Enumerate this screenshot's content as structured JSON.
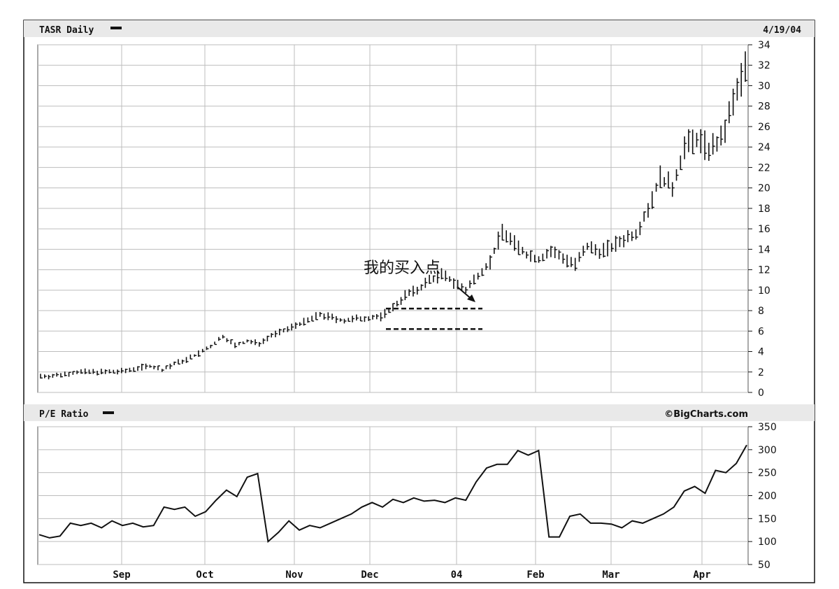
{
  "price_panel": {
    "title": "TASR Daily",
    "date": "4/19/04",
    "annotation": "我的买入点"
  },
  "pe_panel": {
    "title": "P/E Ratio",
    "credit": "©BigCharts.com"
  },
  "colors": {
    "header_band": "#e9e9e9",
    "grid": "#bdbdbd",
    "ink": "#111111"
  },
  "chart_data": [
    {
      "type": "line",
      "subtype": "ohlc-bar",
      "title": "TASR Daily",
      "x_ticks": [
        "Sep",
        "Oct",
        "Nov",
        "Dec",
        "04",
        "Feb",
        "Mar",
        "Apr"
      ],
      "y_ticks": [
        0,
        2,
        4,
        6,
        8,
        10,
        12,
        14,
        16,
        18,
        20,
        22,
        24,
        26,
        28,
        30,
        32,
        34
      ],
      "ylim": [
        0,
        34
      ],
      "grid": true,
      "annotation": {
        "text": "我的买入点",
        "consolidation_range": [
          6.2,
          8.2
        ],
        "consolidation_span": [
          "Dec",
          "04"
        ]
      },
      "anchors": [
        [
          "Aug",
          1.6
        ],
        [
          "Aug",
          1.6
        ],
        [
          "Aug",
          1.8
        ],
        [
          "Aug",
          2.0
        ],
        [
          "Sep",
          2.0
        ],
        [
          "Sep",
          2.0
        ],
        [
          "Sep",
          2.0
        ],
        [
          "Sep",
          2.1
        ],
        [
          "Oct",
          2.4
        ],
        [
          "Oct",
          2.6
        ],
        [
          "Oct",
          2.2
        ],
        [
          "Oct",
          2.8
        ],
        [
          "Oct",
          3.2
        ],
        [
          "Oct",
          3.8
        ],
        [
          "Oct",
          4.5
        ],
        [
          "Nov",
          5.5
        ],
        [
          "Nov",
          4.6
        ],
        [
          "Nov",
          5.0
        ],
        [
          "Nov",
          4.8
        ],
        [
          "Nov",
          5.6
        ],
        [
          "Nov",
          6.0
        ],
        [
          "Dec",
          6.6
        ],
        [
          "Dec",
          7.0
        ],
        [
          "Dec",
          7.6
        ],
        [
          "Dec",
          7.3
        ],
        [
          "Dec",
          7.0
        ],
        [
          "Dec",
          7.2
        ],
        [
          "04",
          7.3
        ],
        [
          "04",
          7.4
        ],
        [
          "04",
          8.3
        ],
        [
          "04",
          9.5
        ],
        [
          "04",
          10.0
        ],
        [
          "04",
          11.0
        ],
        [
          "Jan",
          11.5
        ],
        [
          "Jan",
          10.8
        ],
        [
          "Jan",
          10.0
        ],
        [
          "Feb",
          11.5
        ],
        [
          "Feb",
          12.8
        ],
        [
          "Feb",
          15.8
        ],
        [
          "Feb",
          14.5
        ],
        [
          "Feb",
          13.5
        ],
        [
          "Feb",
          13.0
        ],
        [
          "Mar",
          13.8
        ],
        [
          "Mar",
          13.2
        ],
        [
          "Mar",
          12.5
        ],
        [
          "Mar",
          14.2
        ],
        [
          "Mar",
          13.8
        ],
        [
          "Mar",
          14.2
        ],
        [
          "Mar",
          15.0
        ],
        [
          "Mar",
          15.6
        ],
        [
          "Apr",
          18.0
        ],
        [
          "Apr",
          21.0
        ],
        [
          "Apr",
          20.0
        ],
        [
          "Apr",
          24.0
        ],
        [
          "Apr",
          24.8
        ],
        [
          "Apr",
          23.8
        ],
        [
          "Apr",
          24.6
        ],
        [
          "Apr",
          28.3
        ],
        [
          "Apr",
          31.8
        ]
      ]
    },
    {
      "type": "line",
      "title": "P/E Ratio",
      "x_ticks": [
        "Sep",
        "Oct",
        "Nov",
        "Dec",
        "04",
        "Feb",
        "Mar",
        "Apr"
      ],
      "y_ticks": [
        50,
        100,
        150,
        200,
        250,
        300,
        350
      ],
      "ylim": [
        50,
        350
      ],
      "grid": true,
      "points": [
        [
          "Aug",
          115
        ],
        [
          "Aug",
          108
        ],
        [
          "Aug",
          112
        ],
        [
          "Aug",
          140
        ],
        [
          "Aug",
          135
        ],
        [
          "Sep",
          140
        ],
        [
          "Sep",
          130
        ],
        [
          "Sep",
          145
        ],
        [
          "Sep",
          135
        ],
        [
          "Sep",
          140
        ],
        [
          "Sep",
          132
        ],
        [
          "Sep",
          135
        ],
        [
          "Oct",
          175
        ],
        [
          "Oct",
          170
        ],
        [
          "Oct",
          175
        ],
        [
          "Oct",
          155
        ],
        [
          "Oct",
          165
        ],
        [
          "Oct",
          190
        ],
        [
          "Oct",
          212
        ],
        [
          "Oct",
          198
        ],
        [
          "Oct",
          240
        ],
        [
          "Oct",
          248
        ],
        [
          "Oct",
          100
        ],
        [
          "Oct",
          120
        ],
        [
          "Nov",
          145
        ],
        [
          "Nov",
          125
        ],
        [
          "Nov",
          135
        ],
        [
          "Nov",
          130
        ],
        [
          "Nov",
          140
        ],
        [
          "Nov",
          150
        ],
        [
          "Nov",
          160
        ],
        [
          "Nov",
          175
        ],
        [
          "Dec",
          185
        ],
        [
          "Dec",
          175
        ],
        [
          "Dec",
          192
        ],
        [
          "Dec",
          185
        ],
        [
          "Dec",
          195
        ],
        [
          "Dec",
          188
        ],
        [
          "Dec",
          190
        ],
        [
          "04",
          185
        ],
        [
          "04",
          195
        ],
        [
          "04",
          190
        ],
        [
          "04",
          230
        ],
        [
          "04",
          260
        ],
        [
          "04",
          268
        ],
        [
          "Jan",
          268
        ],
        [
          "Jan",
          298
        ],
        [
          "Jan",
          288
        ],
        [
          "Feb",
          298
        ],
        [
          "Feb",
          110
        ],
        [
          "Feb",
          110
        ],
        [
          "Feb",
          155
        ],
        [
          "Feb",
          160
        ],
        [
          "Feb",
          140
        ],
        [
          "Mar",
          140
        ],
        [
          "Mar",
          138
        ],
        [
          "Mar",
          130
        ],
        [
          "Mar",
          145
        ],
        [
          "Mar",
          140
        ],
        [
          "Mar",
          150
        ],
        [
          "Mar",
          160
        ],
        [
          "Mar",
          175
        ],
        [
          "Apr",
          210
        ],
        [
          "Apr",
          220
        ],
        [
          "Apr",
          205
        ],
        [
          "Apr",
          255
        ],
        [
          "Apr",
          250
        ],
        [
          "Apr",
          270
        ],
        [
          "Apr",
          310
        ]
      ]
    }
  ]
}
